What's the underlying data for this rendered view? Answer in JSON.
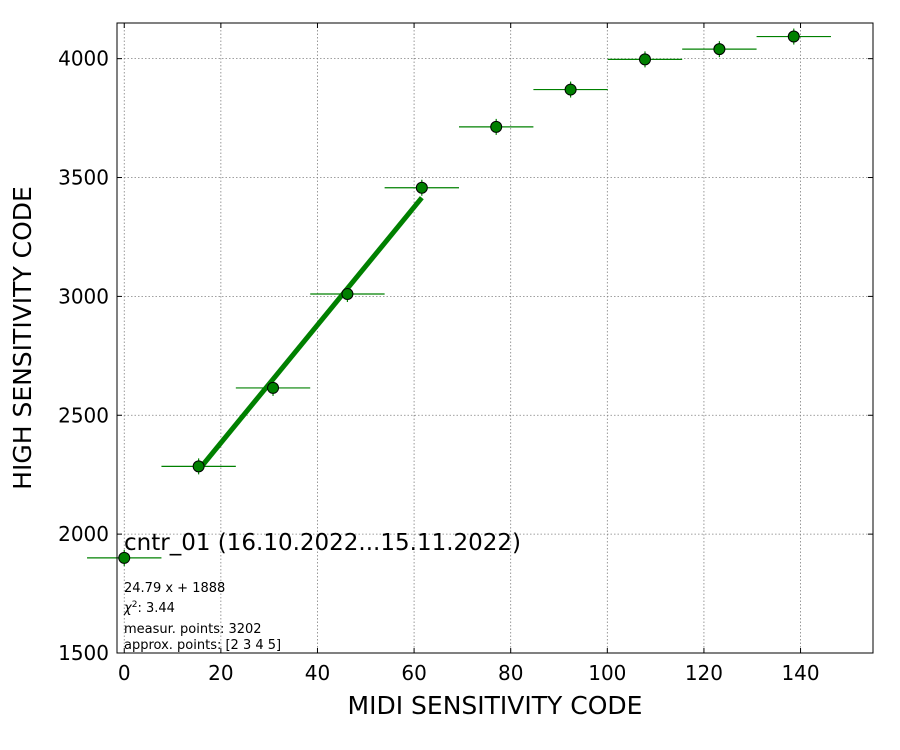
{
  "chart_data": {
    "type": "scatter",
    "title": "cntr_01 (16.10.2022...15.11.2022)",
    "xlabel": "MIDI SENSITIVITY CODE",
    "ylabel": "HIGH SENSITIVITY CODE",
    "xlim": [
      -1.5,
      155
    ],
    "ylim": [
      1500,
      4150
    ],
    "xticks": [
      0,
      20,
      40,
      60,
      80,
      100,
      120,
      140
    ],
    "yticks": [
      1500,
      2000,
      2500,
      3000,
      3500,
      4000
    ],
    "grid": true,
    "marker_color": "#008000",
    "line_color": "#008000",
    "points": [
      {
        "x": 0,
        "y": 1900,
        "xerr": 7.7
      },
      {
        "x": 15.4,
        "y": 2285,
        "xerr": 7.7
      },
      {
        "x": 30.8,
        "y": 2615,
        "xerr": 7.7
      },
      {
        "x": 46.2,
        "y": 3010,
        "xerr": 7.7
      },
      {
        "x": 61.6,
        "y": 3457,
        "xerr": 7.7
      },
      {
        "x": 77.0,
        "y": 3713,
        "xerr": 7.7
      },
      {
        "x": 92.4,
        "y": 3870,
        "xerr": 7.7
      },
      {
        "x": 107.8,
        "y": 3997,
        "xerr": 7.7
      },
      {
        "x": 123.2,
        "y": 4040,
        "xerr": 7.7
      },
      {
        "x": 138.6,
        "y": 4093,
        "xerr": 7.7
      }
    ],
    "fit_line": {
      "x": [
        15.4,
        61.6
      ],
      "slope": 24.79,
      "intercept": 1888
    },
    "annotations": {
      "equation": "24.79 x + 1888",
      "chi2_value": ": 3.44",
      "measur_points": "measur. points: 3202",
      "approx_points": "approx. points: [2 3 4 5]"
    }
  }
}
